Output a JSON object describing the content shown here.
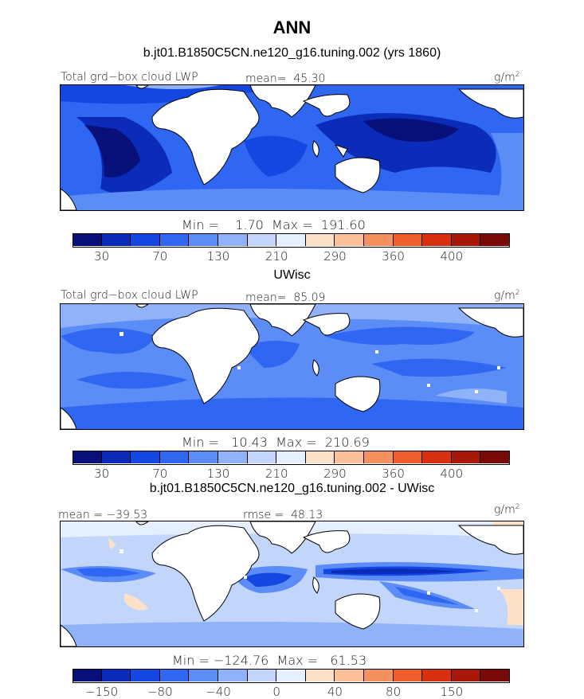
{
  "title": "ANN",
  "panels": [
    {
      "subtitle": "b.jt01.B1850C5CN.ne120_g16.tuning.002 (yrs 1860)",
      "left_label": "Total grd−box cloud LWP",
      "center_label": "mean=  45.30",
      "units": "g/m",
      "units_exp": "2",
      "minmax": "Min =    1.70  Max =  191.60",
      "colorbar_labels": [
        "30",
        "70",
        "130",
        "210",
        "290",
        "360",
        "400"
      ]
    },
    {
      "subtitle": "UWisc",
      "left_label": "Total grd−box cloud LWP",
      "center_label": "mean=  85.09",
      "units": "g/m",
      "units_exp": "2",
      "minmax": "Min =   10.43  Max =  210.69",
      "colorbar_labels": [
        "30",
        "70",
        "130",
        "210",
        "290",
        "360",
        "400"
      ]
    },
    {
      "subtitle": "b.jt01.B1850C5CN.ne120_g16.tuning.002 - UWisc",
      "left_label": "mean = −39.53",
      "center_label": "rmse =  48.13",
      "units": "g/m",
      "units_exp": "2",
      "minmax": "Min = −124.76  Max =   61.53",
      "colorbar_labels": [
        "−150",
        "−80",
        "−40",
        "0",
        "40",
        "80",
        "150"
      ]
    }
  ],
  "palette": [
    "#08117a",
    "#0b2cb8",
    "#1446e0",
    "#2f66f2",
    "#5c8cf5",
    "#8fb2f8",
    "#c2d6fb",
    "#e6efff",
    "#fde0c8",
    "#fbbf9a",
    "#f6905f",
    "#ef5e2c",
    "#d63010",
    "#a81808",
    "#7a0a08"
  ]
}
